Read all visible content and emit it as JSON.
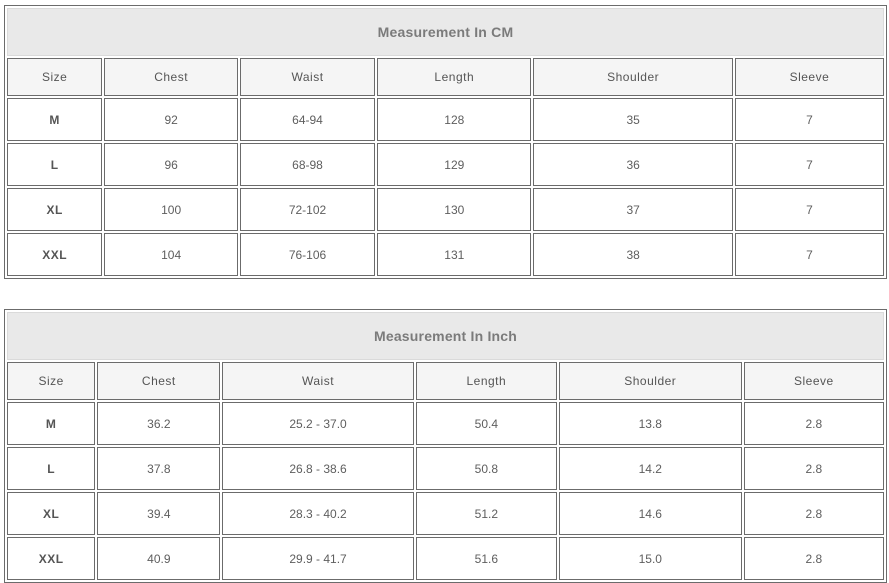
{
  "tables": [
    {
      "title": "Measurement In CM",
      "columns": [
        "Size",
        "Chest",
        "Waist",
        "Length",
        "Shoulder",
        "Sleeve"
      ],
      "rows": [
        [
          "M",
          "92",
          "64-94",
          "128",
          "35",
          "7"
        ],
        [
          "L",
          "96",
          "68-98",
          "129",
          "36",
          "7"
        ],
        [
          "XL",
          "100",
          "72-102",
          "130",
          "37",
          "7"
        ],
        [
          "XXL",
          "104",
          "76-106",
          "131",
          "38",
          "7"
        ]
      ]
    },
    {
      "title": "Measurement In Inch",
      "columns": [
        "Size",
        "Chest",
        "Waist",
        "Length",
        "Shoulder",
        "Sleeve"
      ],
      "rows": [
        [
          "M",
          "36.2",
          "25.2 - 37.0",
          "50.4",
          "13.8",
          "2.8"
        ],
        [
          "L",
          "37.8",
          "26.8 - 38.6",
          "50.8",
          "14.2",
          "2.8"
        ],
        [
          "XL",
          "39.4",
          "28.3 - 40.2",
          "51.2",
          "14.6",
          "2.8"
        ],
        [
          "XXL",
          "40.9",
          "29.9 - 41.7",
          "51.6",
          "15.0",
          "2.8"
        ]
      ]
    }
  ],
  "colors": {
    "border": "#6b6b6b",
    "title_bg": "#e9e9e9",
    "header_bg": "#f5f5f5",
    "title_text": "#7b7b7b",
    "cell_text": "#5e5e5e"
  }
}
